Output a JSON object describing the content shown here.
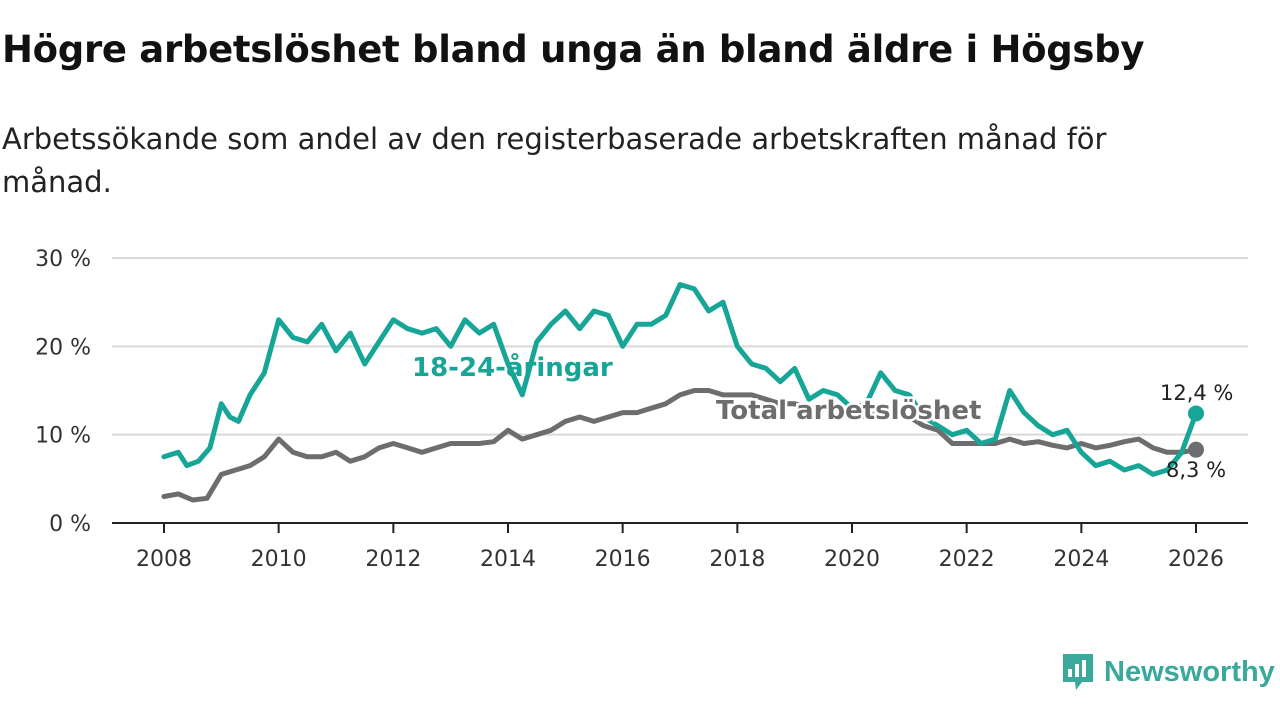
{
  "title": "Högre arbetslöshet bland unga än bland äldre i Högsby",
  "subtitle": "Arbetssökande som andel av den registerbaserade arbetskraften månad för månad.",
  "brand": {
    "name": "Newsworthy",
    "icon": "newsworthy-logo-icon"
  },
  "colors": {
    "youth": "#17a598",
    "total": "#6d6d6f",
    "grid": "#d9d9d9",
    "axis": "#222222"
  },
  "chart_data": {
    "type": "line",
    "title": "Högre arbetslöshet bland unga än bland äldre i Högsby",
    "xlabel": "",
    "ylabel": "",
    "xlim": [
      2008,
      2026
    ],
    "ylim": [
      0,
      30
    ],
    "grid": true,
    "x_ticks": [
      2008,
      2010,
      2012,
      2014,
      2016,
      2018,
      2020,
      2022,
      2024,
      2026
    ],
    "y_ticks": [
      {
        "value": 0,
        "label": "0 %"
      },
      {
        "value": 10,
        "label": "10 %"
      },
      {
        "value": 20,
        "label": "20 %"
      },
      {
        "value": 30,
        "label": "30 %"
      }
    ],
    "series": [
      {
        "name": "18-24-åringar",
        "color": "#17a598",
        "end_label": "12,4 %",
        "x": [
          2008,
          2008.25,
          2008.4,
          2008.6,
          2008.8,
          2009.0,
          2009.15,
          2009.3,
          2009.5,
          2009.75,
          2010.0,
          2010.25,
          2010.5,
          2010.75,
          2011.0,
          2011.25,
          2011.5,
          2011.75,
          2012.0,
          2012.25,
          2012.5,
          2012.75,
          2013.0,
          2013.25,
          2013.5,
          2013.75,
          2014.0,
          2014.25,
          2014.5,
          2014.75,
          2015.0,
          2015.25,
          2015.5,
          2015.75,
          2016.0,
          2016.25,
          2016.5,
          2016.75,
          2017.0,
          2017.25,
          2017.5,
          2017.75,
          2018.0,
          2018.25,
          2018.5,
          2018.75,
          2019.0,
          2019.25,
          2019.5,
          2019.75,
          2020.0,
          2020.25,
          2020.5,
          2020.75,
          2021.0,
          2021.25,
          2021.5,
          2021.75,
          2022.0,
          2022.25,
          2022.5,
          2022.75,
          2023.0,
          2023.25,
          2023.5,
          2023.75,
          2024.0,
          2024.25,
          2024.5,
          2024.75,
          2025.0,
          2025.25,
          2025.5,
          2025.75,
          2026.0
        ],
        "values": [
          7.5,
          8.0,
          6.5,
          7.0,
          8.5,
          13.5,
          12.0,
          11.5,
          14.5,
          17.0,
          23.0,
          21.0,
          20.5,
          22.5,
          19.5,
          21.5,
          18.0,
          20.5,
          23.0,
          22.0,
          21.5,
          22.0,
          20.0,
          23.0,
          21.5,
          22.5,
          18.0,
          14.5,
          20.5,
          22.5,
          24.0,
          22.0,
          24.0,
          23.5,
          20.0,
          22.5,
          22.5,
          23.5,
          27.0,
          26.5,
          24.0,
          25.0,
          20.0,
          18.0,
          17.5,
          16.0,
          17.5,
          14.0,
          15.0,
          14.5,
          13.0,
          13.5,
          17.0,
          15.0,
          14.5,
          12.0,
          11.0,
          10.0,
          10.5,
          9.0,
          9.5,
          15.0,
          12.5,
          11.0,
          10.0,
          10.5,
          8.0,
          6.5,
          7.0,
          6.0,
          6.5,
          5.5,
          6.0,
          8.0,
          12.4
        ]
      },
      {
        "name": "Total arbetslöshet",
        "color": "#6d6d6f",
        "end_label": "8,3 %",
        "x": [
          2008,
          2008.25,
          2008.5,
          2008.75,
          2009.0,
          2009.25,
          2009.5,
          2009.75,
          2010.0,
          2010.25,
          2010.5,
          2010.75,
          2011.0,
          2011.25,
          2011.5,
          2011.75,
          2012.0,
          2012.25,
          2012.5,
          2012.75,
          2013.0,
          2013.25,
          2013.5,
          2013.75,
          2014.0,
          2014.25,
          2014.5,
          2014.75,
          2015.0,
          2015.25,
          2015.5,
          2015.75,
          2016.0,
          2016.25,
          2016.5,
          2016.75,
          2017.0,
          2017.25,
          2017.5,
          2017.75,
          2018.0,
          2018.25,
          2018.5,
          2018.75,
          2019.0,
          2019.25,
          2019.5,
          2019.75,
          2020.0,
          2020.25,
          2020.5,
          2020.75,
          2021.0,
          2021.25,
          2021.5,
          2021.75,
          2022.0,
          2022.25,
          2022.5,
          2022.75,
          2023.0,
          2023.25,
          2023.5,
          2023.75,
          2024.0,
          2024.25,
          2024.5,
          2024.75,
          2025.0,
          2025.25,
          2025.5,
          2025.75,
          2026.0
        ],
        "values": [
          3.0,
          3.3,
          2.6,
          2.8,
          5.5,
          6.0,
          6.5,
          7.5,
          9.5,
          8.0,
          7.5,
          7.5,
          8.0,
          7.0,
          7.5,
          8.5,
          9.0,
          8.5,
          8.0,
          8.5,
          9.0,
          9.0,
          9.0,
          9.2,
          10.5,
          9.5,
          10.0,
          10.5,
          11.5,
          12.0,
          11.5,
          12.0,
          12.5,
          12.5,
          13.0,
          13.5,
          14.5,
          15.0,
          15.0,
          14.5,
          14.5,
          14.5,
          14.0,
          13.5,
          13.5,
          13.0,
          13.0,
          13.0,
          12.5,
          12.0,
          12.5,
          12.5,
          12.0,
          11.0,
          10.5,
          9.0,
          9.0,
          9.0,
          9.0,
          9.5,
          9.0,
          9.2,
          8.8,
          8.5,
          9.0,
          8.5,
          8.8,
          9.2,
          9.5,
          8.5,
          8.0,
          8.0,
          8.3
        ]
      }
    ]
  }
}
